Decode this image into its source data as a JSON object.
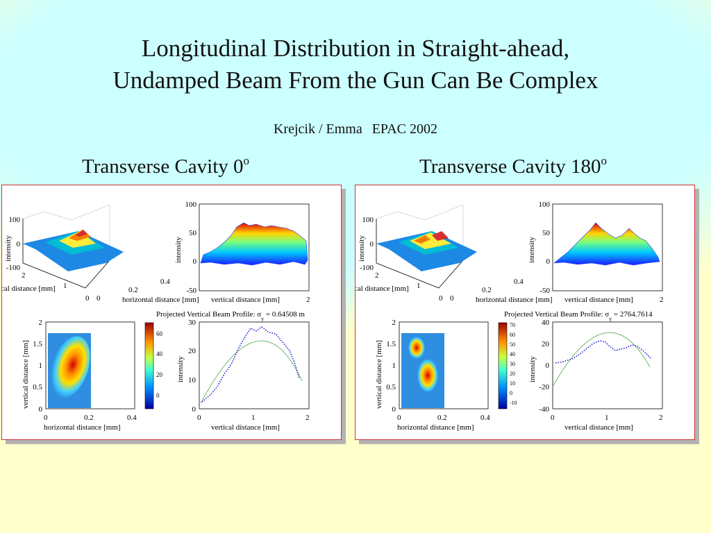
{
  "slide": {
    "title_line1": "Longitudinal Distribution in Straight-ahead,",
    "title_line2": "Undamped Beam From the Gun Can Be Complex",
    "credit_author": "Krejcik / Emma",
    "credit_conf": "EPAC 2002",
    "colors": {
      "background": "#ffffcc",
      "title_band": "#ccffff",
      "panel_border": "#cc3333"
    }
  },
  "panels": [
    {
      "caption": "Transverse Cavity 0",
      "caption_sup": "o",
      "surface3d": {
        "zticks": [
          "100",
          "0",
          "-100"
        ],
        "zlabel": "intensity",
        "yticks": [
          "2",
          "1",
          "0"
        ],
        "ylabel": "cal distance [mm]",
        "xticks": [
          "0",
          "0.2",
          "0.4"
        ],
        "xlabel": "horizontal distance [mm]"
      },
      "side_view": {
        "yticks": [
          "100",
          "50",
          "0",
          "-50"
        ],
        "ylabel": "intensity",
        "xticks": [
          "2"
        ],
        "xlabel": "vertical distance [mm]"
      },
      "image": {
        "xticks": [
          "0",
          "0.2",
          "0.4"
        ],
        "xlabel": "horizontal distance [mm]",
        "yticks": [
          "2",
          "1.5",
          "1",
          "0.5",
          "0"
        ],
        "ylabel": "vertical distance [mm]",
        "colorbar_ticks": [
          "60",
          "40",
          "20",
          "0"
        ]
      },
      "profile": {
        "title_prefix": "Projected Vertical Beam Profile: ",
        "sigma_symbol": "σ",
        "sigma_sub": "y",
        "sigma_value": " = 0.64508 m",
        "ylabel": "intensity",
        "xlabel": "vertical distance [mm]",
        "xticks": [
          "0",
          "1",
          "2"
        ],
        "yticks": [
          "30",
          "20",
          "10",
          "0"
        ]
      }
    },
    {
      "caption": "Transverse Cavity 180",
      "caption_sup": "o",
      "surface3d": {
        "zticks": [
          "100",
          "0",
          "-100"
        ],
        "zlabel": "intensity",
        "yticks": [
          "2",
          "1",
          "0"
        ],
        "ylabel": "cal distance [mm]",
        "xticks": [
          "0",
          "0.2",
          "0.4"
        ],
        "xlabel": "horizontal distance [mm]"
      },
      "side_view": {
        "yticks": [
          "100",
          "50",
          "0",
          "-50"
        ],
        "ylabel": "intensity",
        "xticks": [
          "2"
        ],
        "xlabel": "vertical distance [mm]"
      },
      "image": {
        "xticks": [
          "0",
          "0.2",
          "0.4"
        ],
        "xlabel": "horizontal distance [mm]",
        "yticks": [
          "2",
          "1.5",
          "1",
          "0.5",
          "0"
        ],
        "ylabel": "vertical distance [mm]",
        "colorbar_ticks": [
          "70",
          "60",
          "50",
          "40",
          "30",
          "20",
          "10",
          "0",
          "-10"
        ]
      },
      "profile": {
        "title_prefix": "Projected Vertical Beam Profile: ",
        "sigma_symbol": "σ",
        "sigma_sub": "y",
        "sigma_value": " = 2764.7614",
        "ylabel": "intensity",
        "xlabel": "vertical distance [mm]",
        "xticks": [
          "0",
          "1",
          "2"
        ],
        "yticks": [
          "40",
          "20",
          "0",
          "-20",
          "-40"
        ]
      }
    }
  ]
}
